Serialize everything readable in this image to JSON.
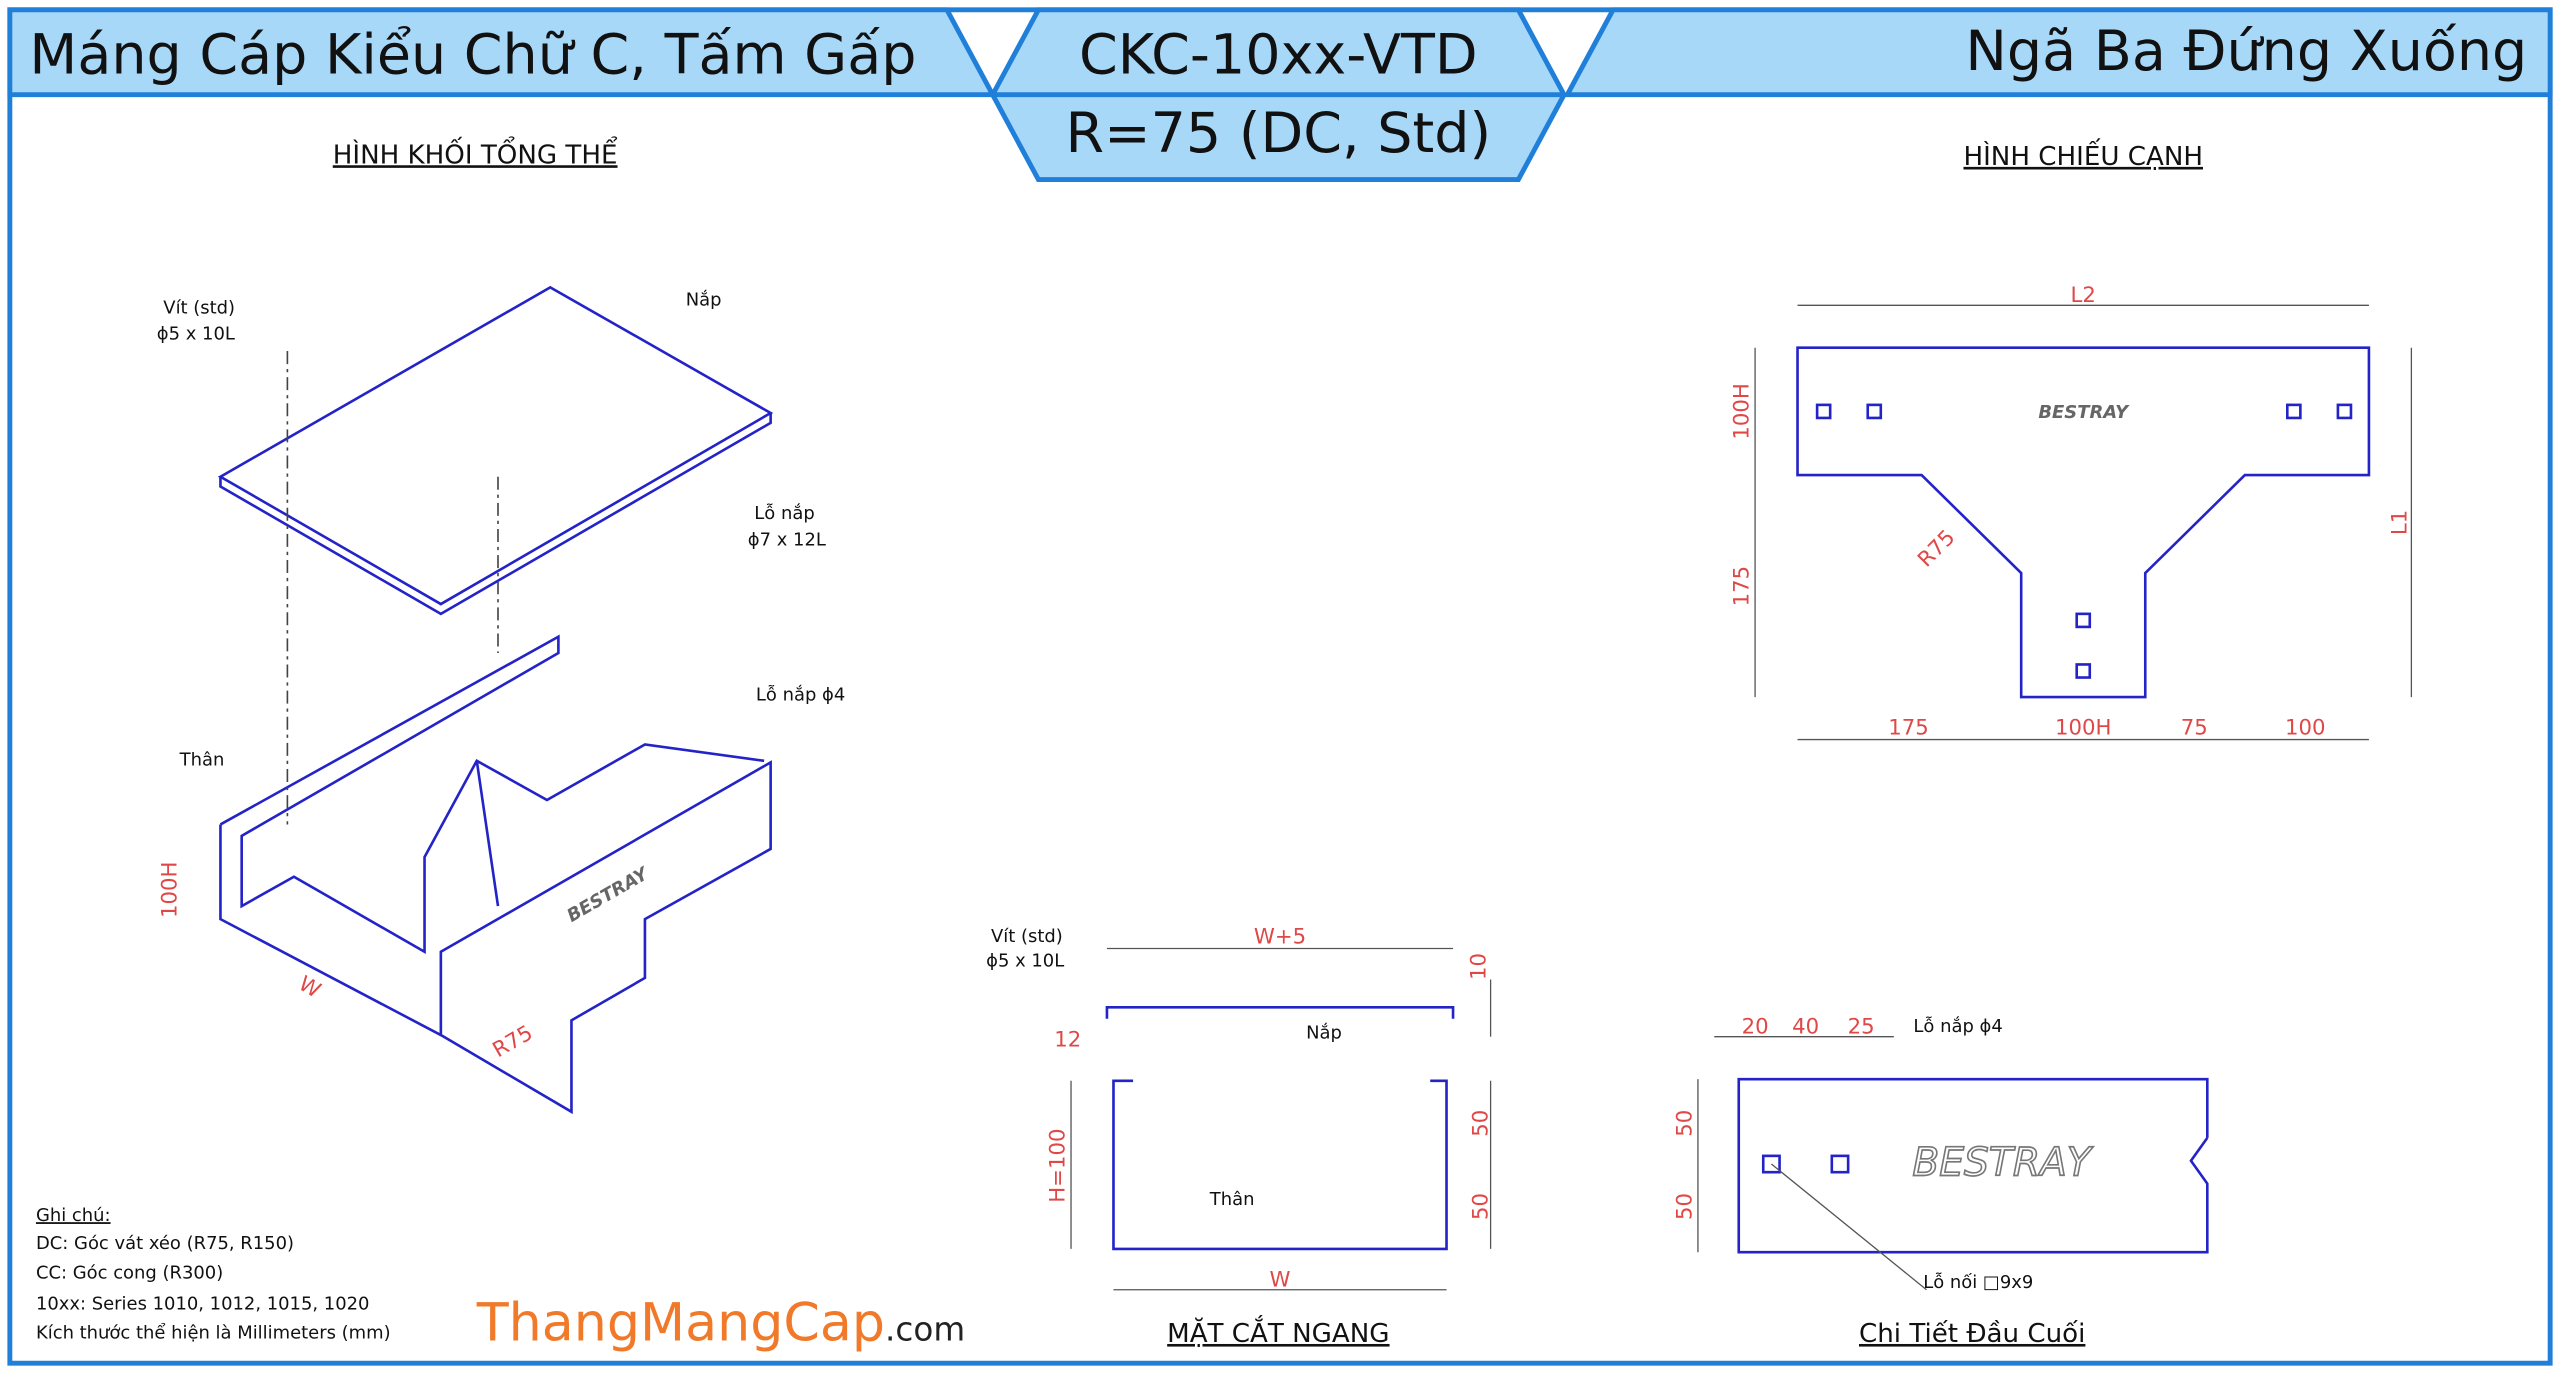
{
  "header": {
    "left_title": "Máng Cáp Kiểu Chữ C, Tấm Gấp",
    "code": "CKC-10xx-VTD",
    "radius": "R=75 (DC, Std)",
    "right_title": "Ngã Ba Đứng Xuống"
  },
  "isometric": {
    "title": "HÌNH KHỐI TỔNG THỂ",
    "screw": "Vít (std)",
    "screw_size": "ϕ5 x 10L",
    "cover": "Nắp",
    "cover_hole": "Lỗ nắp",
    "cover_hole_size": "ϕ7 x 12L",
    "body_hole": "Lỗ nắp ϕ4",
    "body": "Thân",
    "height": "100H",
    "width": "W",
    "radius": "R75",
    "brand": "BESTRAY"
  },
  "side_view": {
    "title": "HÌNH CHIẾU CẠNH",
    "top_length": "L2",
    "branch_height": "100H",
    "drop": "175",
    "total_height": "L1",
    "radius": "R75",
    "bottom_left": "175",
    "bottom_mid": "100H",
    "bottom_75": "75",
    "bottom_right": "100",
    "brand": "BESTRAY"
  },
  "section": {
    "title": "MẶT CẮT NGANG",
    "screw": "Vít (std)",
    "screw_size": "ϕ5 x 10L",
    "width_top": "W+5",
    "gap": "10",
    "lip": "12",
    "cover": "Nắp",
    "height": "H=100",
    "upper": "50",
    "lower": "50",
    "body": "Thân",
    "width": "W"
  },
  "end_detail": {
    "title": "Chi Tiết Đầu Cuối",
    "d1": "20",
    "d2": "40",
    "d3": "25",
    "cover_hole": "Lỗ nắp ϕ4",
    "h1": "50",
    "h2": "50",
    "join_hole": "Lỗ nối □9x9",
    "brand": "BESTRAY"
  },
  "notes": {
    "heading": "Ghi chú:",
    "lines": [
      "DC: Góc vát xéo (R75, R150)",
      "CC: Góc cong (R300)",
      "10xx: Series 1010, 1012, 1015, 1020",
      "Kích thước thể hiện là Millimeters (mm)"
    ]
  },
  "watermark": {
    "name": "ThangMangCap",
    "suffix": ".com"
  }
}
